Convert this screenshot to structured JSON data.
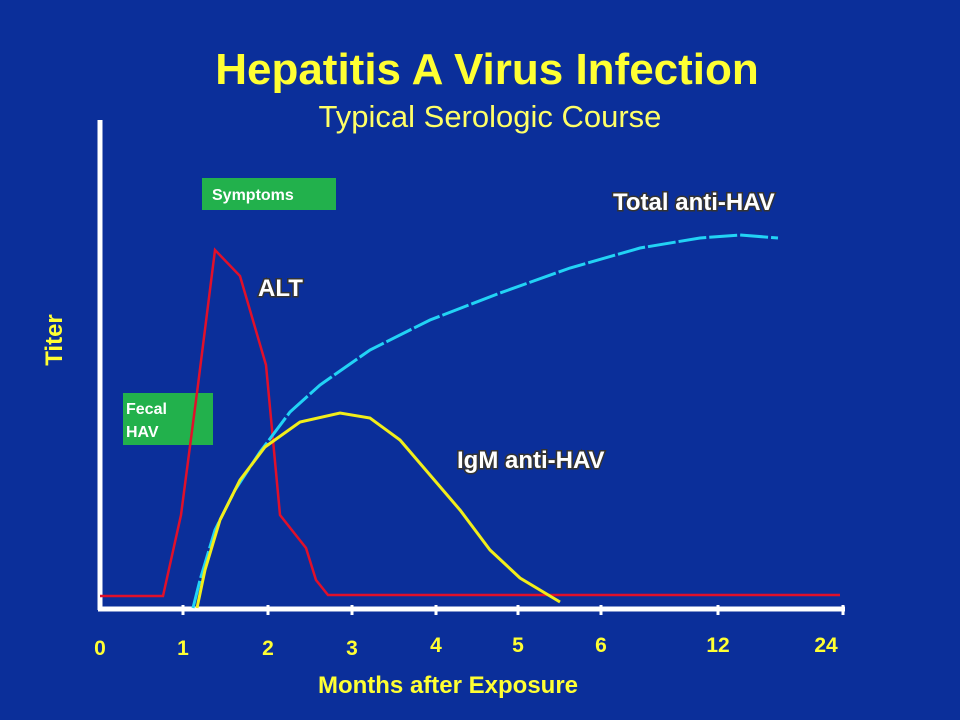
{
  "header": {
    "title": "Hepatitis A Virus Infection",
    "subtitle": "Typical Serologic Course"
  },
  "axes": {
    "y_label": "Titer",
    "x_label": "Months after Exposure",
    "x_ticks": [
      "0",
      "1",
      "2",
      "3",
      "4",
      "5",
      "6",
      "12",
      "24"
    ]
  },
  "boxes": {
    "symptoms": "Symptoms",
    "fecal": [
      "Fecal",
      "HAV"
    ]
  },
  "curves": {
    "alt": "ALT",
    "total": "Total anti-HAV",
    "igm": "IgM anti-HAV"
  }
}
